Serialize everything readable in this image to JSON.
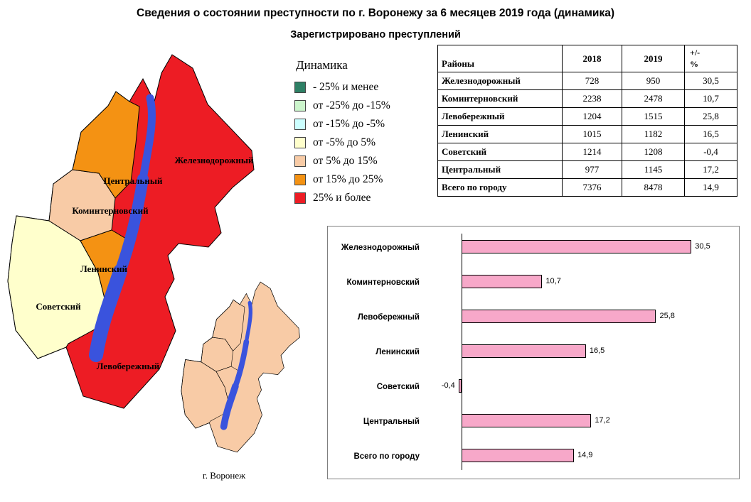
{
  "title": "Сведения о состоянии преступности по г. Воронежу за 6 месяцев 2019 года (динамика)",
  "subtitle": "Зарегистрировано преступлений",
  "legend": {
    "title": "Динамика",
    "items": [
      {
        "label": "- 25% и менее",
        "color": "#2e8065"
      },
      {
        "label": "от -25% до -15%",
        "color": "#ccf5cc"
      },
      {
        "label": "от -15% до -5%",
        "color": "#ccffff"
      },
      {
        "label": "от -5% до 5%",
        "color": "#ffffcc"
      },
      {
        "label": "от 5% до 15%",
        "color": "#f8cba6"
      },
      {
        "label": "от 15% до 25%",
        "color": "#f49213"
      },
      {
        "label": "25% и более",
        "color": "#ed1c24"
      }
    ]
  },
  "map": {
    "river_color": "#3a53dd",
    "district_labels": {
      "zheleznodorozhny": "Железнодорожный",
      "centralny": "Центральный",
      "kominternovsky": "Коминтерновский",
      "leninsky": "Ленинский",
      "sovetsky": "Советский",
      "levoberezhny": "Левобережный"
    },
    "small_map_caption": "г. Воронеж"
  },
  "table": {
    "headers": [
      "Районы",
      "2018",
      "2019",
      "+/-\n%"
    ],
    "rows": [
      {
        "name": "Железнодорожный",
        "y2018": "728",
        "y2019": "950",
        "pct": "30,5"
      },
      {
        "name": "Коминтерновский",
        "y2018": "2238",
        "y2019": "2478",
        "pct": "10,7"
      },
      {
        "name": "Левобережный",
        "y2018": "1204",
        "y2019": "1515",
        "pct": "25,8"
      },
      {
        "name": "Ленинский",
        "y2018": "1015",
        "y2019": "1182",
        "pct": "16,5"
      },
      {
        "name": "Советский",
        "y2018": "1214",
        "y2019": "1208",
        "pct": "-0,4"
      },
      {
        "name": "Центральный",
        "y2018": "977",
        "y2019": "1145",
        "pct": "17,2"
      },
      {
        "name": "Всего по городу",
        "y2018": "7376",
        "y2019": "8478",
        "pct": "14,9"
      }
    ]
  },
  "chart_data": {
    "type": "bar",
    "orientation": "horizontal",
    "categories": [
      "Железнодорожный",
      "Коминтерновский",
      "Левобережный",
      "Ленинский",
      "Советский",
      "Центральный",
      "Всего по городу"
    ],
    "values": [
      30.5,
      10.7,
      25.8,
      16.5,
      -0.4,
      17.2,
      14.9
    ],
    "value_labels": [
      "30,5",
      "10,7",
      "25,8",
      "16,5",
      "-0,4",
      "17,2",
      "14,9"
    ],
    "bar_color": "#f7a8c9",
    "bar_border_color": "#000000",
    "xlim": [
      -5,
      35
    ],
    "axis_at": 0,
    "grid": false,
    "legend_position": "none"
  }
}
